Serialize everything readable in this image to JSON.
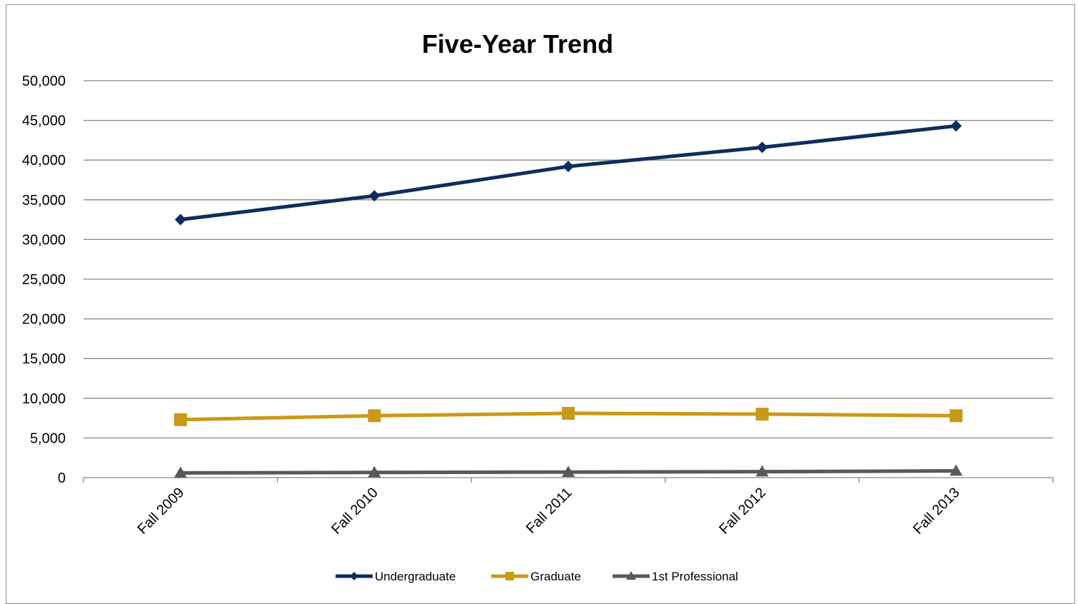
{
  "chart_data": {
    "type": "line",
    "title": "Five-Year Trend",
    "xlabel": "",
    "ylabel": "",
    "categories": [
      "Fall 2009",
      "Fall 2010",
      "Fall 2011",
      "Fall 2012",
      "Fall 2013"
    ],
    "ylim": [
      0,
      50000
    ],
    "yticks": [
      0,
      5000,
      10000,
      15000,
      20000,
      25000,
      30000,
      35000,
      40000,
      45000,
      50000
    ],
    "ytick_labels": [
      "0",
      "5,000",
      "10,000",
      "15,000",
      "20,000",
      "25,000",
      "30,000",
      "35,000",
      "40,000",
      "45,000",
      "50,000"
    ],
    "grid": true,
    "legend_position": "bottom",
    "series": [
      {
        "name": "Undergraduate",
        "color": "#0f2d5c",
        "marker": "diamond",
        "values": [
          32500,
          35500,
          39200,
          41600,
          44300
        ]
      },
      {
        "name": "Graduate",
        "color": "#c99a17",
        "marker": "square",
        "values": [
          7300,
          7800,
          8100,
          8000,
          7800
        ]
      },
      {
        "name": "1st Professional",
        "color": "#595959",
        "marker": "triangle",
        "values": [
          600,
          650,
          700,
          750,
          850
        ]
      }
    ]
  }
}
